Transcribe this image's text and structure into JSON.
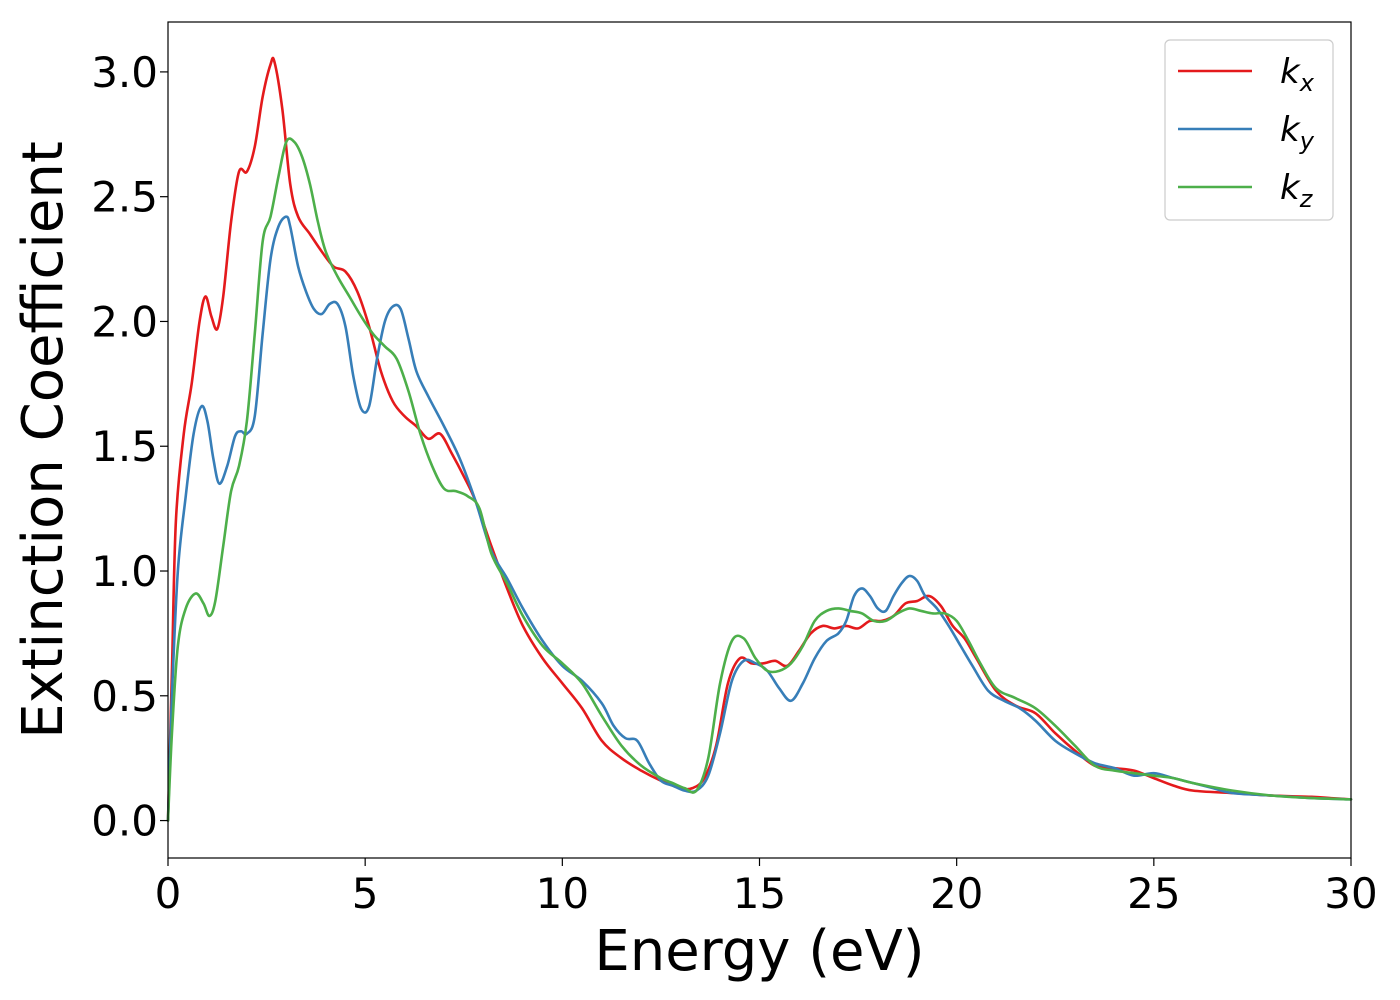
{
  "chart_data": {
    "type": "line",
    "xlabel": "Energy (eV)",
    "ylabel": "Extinction Coefficient",
    "xlim": [
      0,
      30
    ],
    "ylim": [
      -0.15,
      3.2
    ],
    "xticks": [
      "0",
      "5",
      "10",
      "15",
      "20",
      "25",
      "30"
    ],
    "xtick_values": [
      0,
      5,
      10,
      15,
      20,
      25,
      30
    ],
    "yticks": [
      "0.0",
      "0.5",
      "1.0",
      "1.5",
      "2.0",
      "2.5",
      "3.0"
    ],
    "ytick_values": [
      0,
      0.5,
      1.0,
      1.5,
      2.0,
      2.5,
      3.0
    ],
    "grid": false,
    "legend_position": "top-right",
    "series": [
      {
        "name": "k_x",
        "label_main": "k",
        "label_sub": "x",
        "color": "#e41a1c",
        "x": [
          0,
          0.1,
          0.2,
          0.4,
          0.6,
          0.8,
          0.95,
          1.1,
          1.25,
          1.4,
          1.6,
          1.8,
          2.0,
          2.2,
          2.4,
          2.6,
          2.7,
          2.9,
          3.1,
          3.3,
          3.6,
          3.9,
          4.2,
          4.5,
          4.8,
          5.1,
          5.4,
          5.7,
          6.0,
          6.3,
          6.6,
          6.9,
          7.2,
          7.5,
          7.8,
          8.2,
          8.6,
          9.0,
          9.5,
          10.0,
          10.5,
          11.0,
          11.5,
          12.0,
          12.5,
          13.0,
          13.3,
          13.6,
          13.9,
          14.2,
          14.5,
          14.8,
          15.1,
          15.4,
          15.7,
          16.0,
          16.3,
          16.6,
          16.9,
          17.2,
          17.5,
          17.8,
          18.1,
          18.4,
          18.7,
          19.0,
          19.3,
          19.6,
          19.9,
          20.2,
          20.5,
          21.0,
          21.5,
          22.0,
          22.5,
          23.0,
          23.5,
          24.0,
          24.5,
          25.0,
          25.5,
          26.0,
          27.0,
          28.0,
          29.0,
          29.5,
          30.0
        ],
        "y": [
          0.0,
          0.6,
          1.2,
          1.55,
          1.75,
          2.0,
          2.1,
          2.02,
          1.97,
          2.1,
          2.4,
          2.6,
          2.6,
          2.7,
          2.9,
          3.03,
          3.04,
          2.85,
          2.55,
          2.42,
          2.35,
          2.28,
          2.22,
          2.2,
          2.12,
          1.98,
          1.8,
          1.68,
          1.62,
          1.58,
          1.53,
          1.55,
          1.47,
          1.38,
          1.28,
          1.1,
          0.93,
          0.78,
          0.65,
          0.55,
          0.45,
          0.32,
          0.25,
          0.2,
          0.16,
          0.13,
          0.13,
          0.17,
          0.3,
          0.55,
          0.65,
          0.63,
          0.63,
          0.64,
          0.62,
          0.68,
          0.75,
          0.78,
          0.77,
          0.78,
          0.77,
          0.8,
          0.8,
          0.82,
          0.87,
          0.88,
          0.9,
          0.86,
          0.78,
          0.73,
          0.65,
          0.52,
          0.46,
          0.43,
          0.35,
          0.28,
          0.22,
          0.21,
          0.2,
          0.17,
          0.14,
          0.12,
          0.11,
          0.1,
          0.095,
          0.09,
          0.085
        ]
      },
      {
        "name": "k_y",
        "label_main": "k",
        "label_sub": "y",
        "color": "#377eb8",
        "x": [
          0,
          0.1,
          0.25,
          0.45,
          0.65,
          0.85,
          1.0,
          1.15,
          1.3,
          1.5,
          1.7,
          1.85,
          2.0,
          2.2,
          2.4,
          2.6,
          2.8,
          3.0,
          3.1,
          3.3,
          3.5,
          3.7,
          3.9,
          4.1,
          4.3,
          4.5,
          4.7,
          4.9,
          5.1,
          5.3,
          5.5,
          5.7,
          5.9,
          6.1,
          6.3,
          6.6,
          7.0,
          7.4,
          7.8,
          8.2,
          8.6,
          9.0,
          9.5,
          10.0,
          10.5,
          11.0,
          11.3,
          11.6,
          11.9,
          12.2,
          12.5,
          12.8,
          13.1,
          13.4,
          13.7,
          14.0,
          14.3,
          14.6,
          14.9,
          15.2,
          15.5,
          15.8,
          16.1,
          16.4,
          16.7,
          17.0,
          17.2,
          17.4,
          17.6,
          17.8,
          18.0,
          18.2,
          18.4,
          18.6,
          18.8,
          19.0,
          19.2,
          19.5,
          19.8,
          20.1,
          20.4,
          20.8,
          21.2,
          21.6,
          22.0,
          22.5,
          23.0,
          23.5,
          24.0,
          24.5,
          25.0,
          25.5,
          26.0,
          26.5,
          27.0,
          28.0,
          29.0,
          30.0
        ],
        "y": [
          0.0,
          0.5,
          1.0,
          1.3,
          1.55,
          1.66,
          1.6,
          1.45,
          1.35,
          1.42,
          1.54,
          1.56,
          1.55,
          1.62,
          1.95,
          2.25,
          2.38,
          2.42,
          2.38,
          2.22,
          2.12,
          2.05,
          2.03,
          2.07,
          2.07,
          1.98,
          1.78,
          1.65,
          1.66,
          1.85,
          2.0,
          2.06,
          2.05,
          1.93,
          1.8,
          1.7,
          1.58,
          1.45,
          1.28,
          1.08,
          0.97,
          0.85,
          0.72,
          0.62,
          0.56,
          0.47,
          0.38,
          0.33,
          0.32,
          0.23,
          0.16,
          0.14,
          0.12,
          0.12,
          0.18,
          0.35,
          0.56,
          0.64,
          0.63,
          0.6,
          0.53,
          0.48,
          0.55,
          0.65,
          0.72,
          0.75,
          0.8,
          0.9,
          0.93,
          0.9,
          0.85,
          0.84,
          0.9,
          0.95,
          0.98,
          0.96,
          0.9,
          0.85,
          0.78,
          0.7,
          0.62,
          0.52,
          0.48,
          0.45,
          0.4,
          0.32,
          0.27,
          0.23,
          0.21,
          0.18,
          0.19,
          0.17,
          0.15,
          0.13,
          0.11,
          0.1,
          0.09,
          0.085
        ]
      },
      {
        "name": "k_z",
        "label_main": "k",
        "label_sub": "z",
        "color": "#4daf4a",
        "x": [
          0,
          0.1,
          0.25,
          0.45,
          0.7,
          0.9,
          1.05,
          1.2,
          1.4,
          1.6,
          1.8,
          2.0,
          2.2,
          2.4,
          2.6,
          2.8,
          3.0,
          3.2,
          3.4,
          3.6,
          3.8,
          4.0,
          4.3,
          4.6,
          4.9,
          5.2,
          5.5,
          5.8,
          6.1,
          6.4,
          6.7,
          7.0,
          7.3,
          7.6,
          7.9,
          8.2,
          8.6,
          9.0,
          9.5,
          10.0,
          10.5,
          11.0,
          11.5,
          12.0,
          12.5,
          12.8,
          13.1,
          13.4,
          13.7,
          14.0,
          14.3,
          14.6,
          14.9,
          15.2,
          15.5,
          15.8,
          16.1,
          16.4,
          16.7,
          17.0,
          17.3,
          17.6,
          17.9,
          18.2,
          18.5,
          18.8,
          19.1,
          19.4,
          19.7,
          20.0,
          20.3,
          20.6,
          21.0,
          21.5,
          22.0,
          22.5,
          23.0,
          23.5,
          24.0,
          24.5,
          25.0,
          25.5,
          26.0,
          27.0,
          28.0,
          29.0,
          30.0
        ],
        "y": [
          0.0,
          0.35,
          0.7,
          0.85,
          0.91,
          0.87,
          0.82,
          0.88,
          1.1,
          1.32,
          1.42,
          1.6,
          1.95,
          2.32,
          2.42,
          2.58,
          2.72,
          2.72,
          2.66,
          2.55,
          2.4,
          2.28,
          2.18,
          2.1,
          2.02,
          1.95,
          1.9,
          1.85,
          1.72,
          1.55,
          1.42,
          1.33,
          1.32,
          1.3,
          1.25,
          1.07,
          0.95,
          0.82,
          0.7,
          0.63,
          0.55,
          0.42,
          0.3,
          0.22,
          0.17,
          0.15,
          0.13,
          0.12,
          0.25,
          0.55,
          0.72,
          0.73,
          0.65,
          0.6,
          0.6,
          0.63,
          0.7,
          0.8,
          0.84,
          0.85,
          0.84,
          0.83,
          0.8,
          0.8,
          0.83,
          0.85,
          0.84,
          0.83,
          0.83,
          0.8,
          0.72,
          0.63,
          0.53,
          0.49,
          0.45,
          0.38,
          0.3,
          0.22,
          0.2,
          0.19,
          0.18,
          0.17,
          0.15,
          0.12,
          0.1,
          0.09,
          0.085
        ]
      }
    ]
  }
}
